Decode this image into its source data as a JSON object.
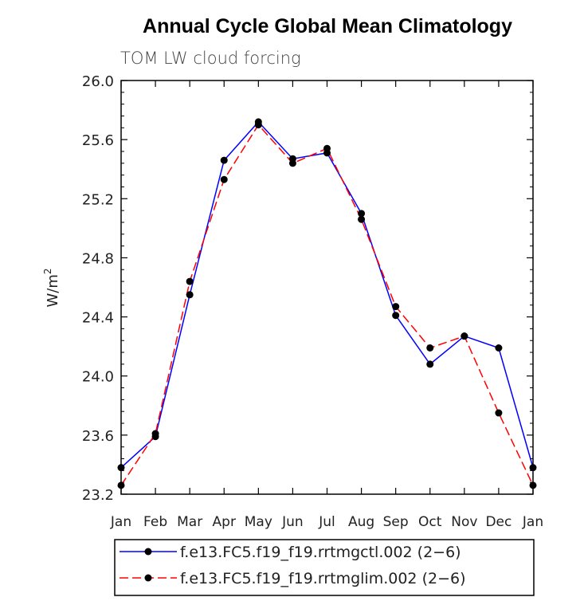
{
  "chart_data": {
    "type": "line",
    "title": "Annual Cycle Global Mean Climatology",
    "subtitle": "TOM LW cloud forcing",
    "xlabel": "",
    "ylabel": "W/m",
    "ylabel_superscript": "2",
    "ylim": [
      23.2,
      26.0
    ],
    "yticks": [
      "23.2",
      "23.6",
      "24.0",
      "24.4",
      "24.8",
      "25.2",
      "25.6",
      "26.0"
    ],
    "grid": false,
    "legend_position": "bottom",
    "categories": [
      "Jan",
      "Feb",
      "Mar",
      "Apr",
      "May",
      "Jun",
      "Jul",
      "Aug",
      "Sep",
      "Oct",
      "Nov",
      "Dec",
      "Jan"
    ],
    "series": [
      {
        "name": "f.e13.FC5.f19_f19.rrtmgctl.002 (2−6)",
        "color": "#0000ff",
        "dash": "solid",
        "values": [
          23.38,
          23.59,
          24.55,
          25.46,
          25.72,
          25.47,
          25.51,
          25.1,
          24.41,
          24.08,
          24.27,
          24.19,
          23.38
        ]
      },
      {
        "name": "f.e13.FC5.f19_f19.rrtmglim.002 (2−6)",
        "color": "#ff0000",
        "dash": "dashed",
        "values": [
          23.26,
          23.61,
          24.64,
          25.33,
          25.7,
          25.44,
          25.54,
          25.06,
          24.47,
          24.19,
          24.27,
          23.75,
          23.26
        ]
      }
    ]
  }
}
